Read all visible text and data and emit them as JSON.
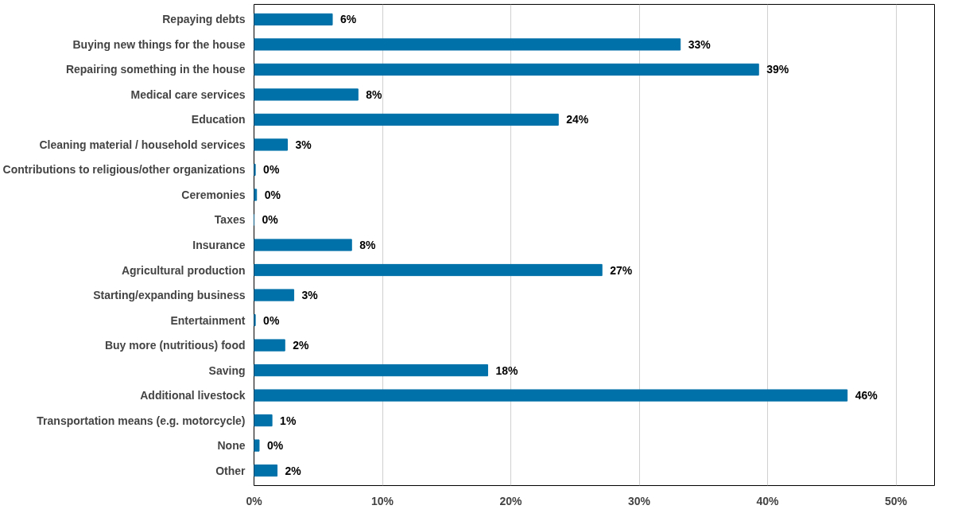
{
  "chart_data": {
    "type": "bar",
    "orientation": "horizontal",
    "categories": [
      "Repaying debts",
      "Buying new things for the house",
      "Repairing something in the house",
      "Medical care services",
      "Education",
      "Cleaning material / household services",
      "Contributions to religious/other organizations",
      "Ceremonies",
      "Taxes",
      "Insurance",
      "Agricultural production",
      "Starting/expanding business",
      "Entertainment",
      "Buy more (nutritious) food",
      "Saving",
      "Additional livestock",
      "Transportation means (e.g. motorcycle)",
      "None",
      "Other"
    ],
    "values": [
      6.1,
      33.2,
      39.3,
      8.1,
      23.7,
      2.6,
      0.1,
      0.2,
      0,
      7.6,
      27.1,
      3.1,
      0.1,
      2.4,
      18.2,
      46.2,
      1.4,
      0.4,
      1.8
    ],
    "value_labels": [
      "6%",
      "33%",
      "39%",
      "8%",
      "24%",
      "3%",
      "0%",
      "0%",
      "0%",
      "8%",
      "27%",
      "3%",
      "0%",
      "2%",
      "18%",
      "46%",
      "1%",
      "0%",
      "2%"
    ],
    "color": "#0071a9",
    "xlim": [
      0,
      53
    ],
    "xticks": [
      {
        "value": 0,
        "label": "0%"
      },
      {
        "value": 10,
        "label": "10%"
      },
      {
        "value": 20,
        "label": "20%"
      },
      {
        "value": 30,
        "label": "30%"
      },
      {
        "value": 40,
        "label": "40%"
      },
      {
        "value": 50,
        "label": "50%"
      }
    ],
    "grid": "x"
  }
}
